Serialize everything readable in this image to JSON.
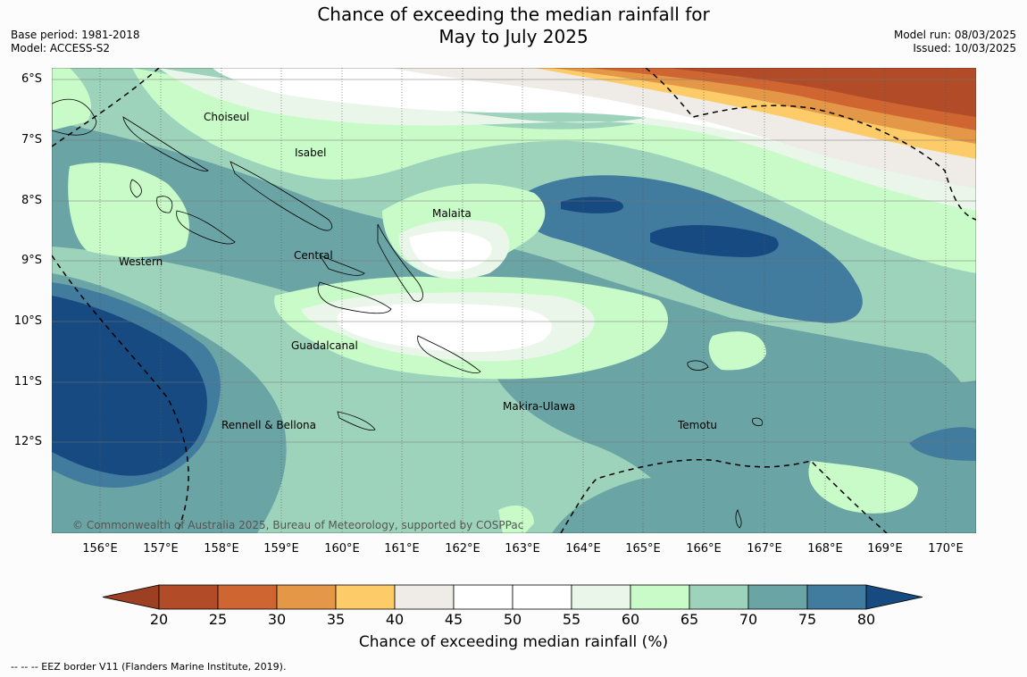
{
  "title": {
    "line1": "Chance of exceeding the median rainfall for",
    "line2": "May to July 2025"
  },
  "meta_left": {
    "base_period": "Base period: 1981-2018",
    "model": "Model: ACCESS-S2"
  },
  "meta_right": {
    "model_run": "Model run: 08/03/2025",
    "issued": "Issued: 10/03/2025"
  },
  "map": {
    "lat_labels": [
      "6°S",
      "7°S",
      "8°S",
      "9°S",
      "10°S",
      "11°S",
      "12°S"
    ],
    "lon_labels": [
      "156°E",
      "157°E",
      "158°E",
      "159°E",
      "160°E",
      "161°E",
      "162°E",
      "163°E",
      "164°E",
      "165°E",
      "166°E",
      "167°E",
      "168°E",
      "169°E",
      "170°E"
    ],
    "regions": [
      "Choiseul",
      "Isabel",
      "Malaita",
      "Central",
      "Western",
      "Guadalcanal",
      "Makira-Ulawa",
      "Temotu",
      "Rennell & Bellona"
    ],
    "copyright": "© Commonwealth of Australia 2025, Bureau of Meteorology, supported by COSPPac"
  },
  "colorbar": {
    "title": "Chance of exceeding median rainfall (%)",
    "ticks": [
      "20",
      "25",
      "30",
      "35",
      "40",
      "45",
      "50",
      "55",
      "60",
      "65",
      "70",
      "75",
      "80"
    ],
    "colors": [
      "#9c3f22",
      "#b24b27",
      "#cf6531",
      "#e39747",
      "#fdcb68",
      "#efebe6",
      "#ffffff",
      "#ffffff",
      "#eaf6ea",
      "#c8fbc8",
      "#9ed3bb",
      "#6ba4a5",
      "#417c9f",
      "#174a80"
    ]
  },
  "footnote": "--  --  -- EEZ border V11 (Flanders Marine Institute, 2019)."
}
